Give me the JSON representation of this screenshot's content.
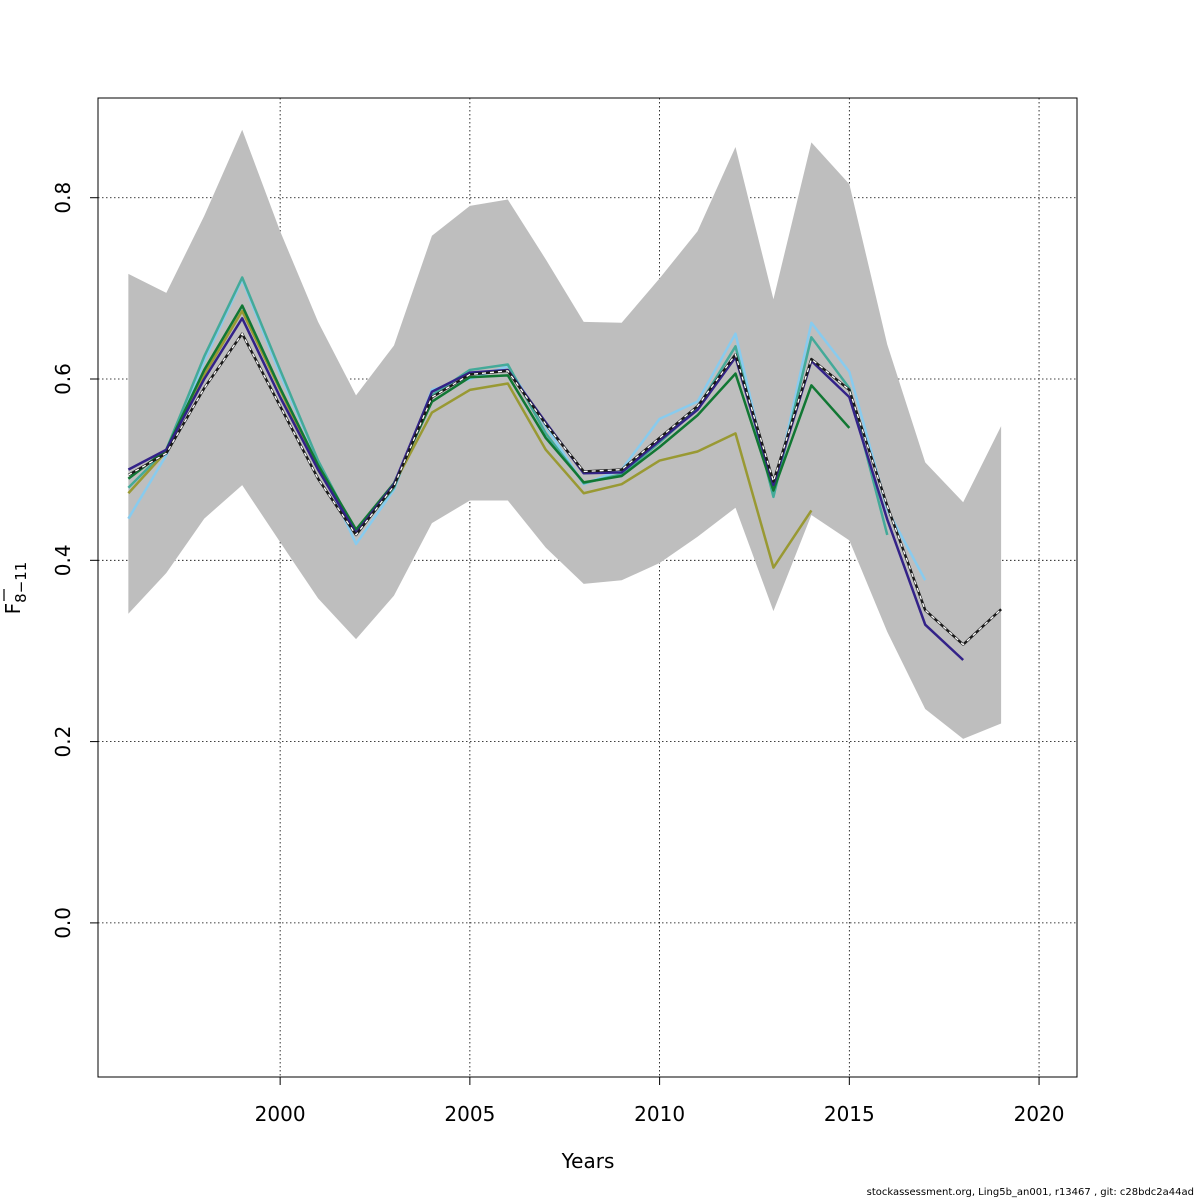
{
  "chart_data": {
    "type": "line",
    "xlabel": "Years",
    "ylabel_main": "F",
    "ylabel_sub": "8−11",
    "xlim": [
      1995.2,
      2021.0
    ],
    "ylim": [
      -0.17,
      0.91
    ],
    "x_ticks": [
      2000,
      2005,
      2010,
      2015,
      2020
    ],
    "y_ticks": [
      0.0,
      0.2,
      0.4,
      0.6,
      0.8
    ],
    "grid": true,
    "band": {
      "x": [
        1996,
        1997,
        1998,
        1999,
        2000,
        2001,
        2002,
        2003,
        2004,
        2005,
        2006,
        2007,
        2008,
        2009,
        2010,
        2011,
        2012,
        2013,
        2014,
        2015,
        2016,
        2017,
        2018,
        2019
      ],
      "upper": [
        0.716,
        0.695,
        0.78,
        0.875,
        0.763,
        0.663,
        0.582,
        0.637,
        0.758,
        0.791,
        0.798,
        0.732,
        0.663,
        0.662,
        0.711,
        0.763,
        0.856,
        0.688,
        0.861,
        0.815,
        0.638,
        0.508,
        0.464,
        0.548
      ],
      "lower": [
        0.341,
        0.386,
        0.446,
        0.483,
        0.42,
        0.358,
        0.313,
        0.361,
        0.441,
        0.466,
        0.466,
        0.414,
        0.374,
        0.378,
        0.397,
        0.426,
        0.458,
        0.344,
        0.45,
        0.422,
        0.321,
        0.236,
        0.203,
        0.22
      ],
      "color": "#bebebe"
    },
    "series": [
      {
        "color": "#88cbee",
        "x": [
          1996,
          1997,
          1998,
          1999,
          2000,
          2001,
          2002,
          2003,
          2004,
          2005,
          2006,
          2007,
          2008,
          2009,
          2010,
          2011,
          2012,
          2013,
          2014,
          2015,
          2016,
          2017
        ],
        "values": [
          0.446,
          0.516,
          0.62,
          0.71,
          0.605,
          0.51,
          0.418,
          0.478,
          0.588,
          0.6,
          0.614,
          0.548,
          0.484,
          0.5,
          0.556,
          0.575,
          0.65,
          0.47,
          0.662,
          0.608,
          0.456,
          0.378
        ]
      },
      {
        "color": "#44aa99",
        "x": [
          1996,
          1997,
          1998,
          1999,
          2000,
          2001,
          2002,
          2003,
          2004,
          2005,
          2006,
          2007,
          2008,
          2009,
          2010,
          2011,
          2012,
          2013,
          2014,
          2015,
          2016
        ],
        "values": [
          0.48,
          0.522,
          0.625,
          0.712,
          0.61,
          0.51,
          0.43,
          0.48,
          0.582,
          0.61,
          0.616,
          0.54,
          0.485,
          0.495,
          0.53,
          0.568,
          0.636,
          0.47,
          0.646,
          0.59,
          0.428
        ]
      },
      {
        "color": "#999933",
        "x": [
          1996,
          1997,
          1998,
          1999,
          2000,
          2001,
          2002,
          2003,
          2004,
          2005,
          2006,
          2007,
          2008,
          2009,
          2010,
          2011,
          2012,
          2013,
          2014
        ],
        "values": [
          0.474,
          0.52,
          0.605,
          0.675,
          0.588,
          0.5,
          0.432,
          0.484,
          0.563,
          0.588,
          0.595,
          0.522,
          0.474,
          0.484,
          0.51,
          0.52,
          0.54,
          0.392,
          0.455
        ]
      },
      {
        "color": "#117733",
        "x": [
          1996,
          1997,
          1998,
          1999,
          2000,
          2001,
          2002,
          2003,
          2004,
          2005,
          2006,
          2007,
          2008,
          2009,
          2010,
          2011,
          2012,
          2013,
          2014,
          2015
        ],
        "values": [
          0.49,
          0.522,
          0.61,
          0.681,
          0.59,
          0.505,
          0.434,
          0.485,
          0.575,
          0.602,
          0.604,
          0.535,
          0.486,
          0.493,
          0.525,
          0.56,
          0.606,
          0.477,
          0.593,
          0.546
        ]
      },
      {
        "color": "#332288",
        "x": [
          1996,
          1997,
          1998,
          1999,
          2000,
          2001,
          2002,
          2003,
          2004,
          2005,
          2006,
          2007,
          2008,
          2009,
          2010,
          2011,
          2012,
          2013,
          2014,
          2015,
          2016,
          2017,
          2018
        ],
        "values": [
          0.5,
          0.522,
          0.6,
          0.667,
          0.58,
          0.5,
          0.43,
          0.484,
          0.586,
          0.607,
          0.61,
          0.552,
          0.496,
          0.497,
          0.532,
          0.566,
          0.624,
          0.483,
          0.62,
          0.58,
          0.445,
          0.329,
          0.29
        ]
      },
      {
        "color": "#1a1a1a",
        "dashed_overlay": true,
        "x": [
          1996,
          1997,
          1998,
          1999,
          2000,
          2001,
          2002,
          2003,
          2004,
          2005,
          2006,
          2007,
          2008,
          2009,
          2010,
          2011,
          2012,
          2013,
          2014,
          2015,
          2016,
          2017,
          2018,
          2019
        ],
        "values": [
          0.494,
          0.518,
          0.59,
          0.65,
          0.57,
          0.49,
          0.428,
          0.482,
          0.58,
          0.605,
          0.609,
          0.55,
          0.498,
          0.5,
          0.535,
          0.57,
          0.627,
          0.487,
          0.622,
          0.588,
          0.46,
          0.345,
          0.307,
          0.346
        ]
      }
    ]
  },
  "footer": "stockassessment.org, Ling5b_an001, r13467 , git: c28bdc2a44ad"
}
